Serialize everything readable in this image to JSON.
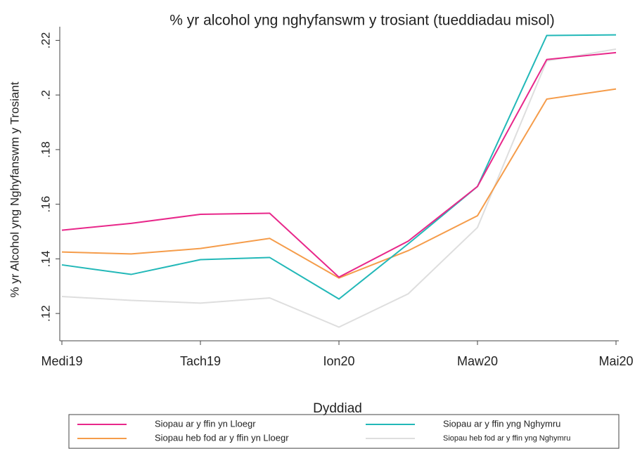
{
  "chart_data": {
    "type": "line",
    "title": "% yr alcohol yng nghyfanswm y trosiant (tueddiadau misol)",
    "x_label": "Dyddiad",
    "y_label": "% yr Alcohol yng Nghyfanswm y Trosiant",
    "categories": [
      "Medi19",
      null,
      "Tach19",
      null,
      "Ion20",
      null,
      "Maw20",
      null,
      "Mai20"
    ],
    "series": [
      {
        "name": "Siopau ar y ffin yn Lloegr",
        "color": "#e8278a",
        "values": [
          0.1505,
          0.153,
          0.1563,
          0.1567,
          0.1333,
          0.1465,
          0.1665,
          0.213,
          0.2155
        ]
      },
      {
        "name": "Siopau ar y ffin yng Nghymru",
        "color": "#22b8b8",
        "values": [
          0.1378,
          0.1343,
          0.1397,
          0.1405,
          0.1253,
          0.1455,
          0.1665,
          0.2218,
          0.222
        ]
      },
      {
        "name": "Siopau heb fod ar y ffin yn Lloegr",
        "color": "#f59c4a",
        "values": [
          0.1425,
          0.1418,
          0.1438,
          0.1475,
          0.133,
          0.143,
          0.1558,
          0.1985,
          0.2022
        ]
      },
      {
        "name": "Siopau heb fod ar y ffin yng Nghymru",
        "color": "#dedede",
        "values": [
          0.1262,
          0.1248,
          0.1238,
          0.1257,
          0.115,
          0.1272,
          0.1515,
          0.2125,
          0.2168
        ]
      }
    ],
    "ylim": [
      0.11,
      0.225
    ],
    "yticks": [
      {
        "value": 0.12,
        "label": ".12"
      },
      {
        "value": 0.14,
        "label": ".14"
      },
      {
        "value": 0.16,
        "label": ".16"
      },
      {
        "value": 0.18,
        "label": ".18"
      },
      {
        "value": 0.2,
        "label": ".2"
      },
      {
        "value": 0.22,
        "label": ".22"
      }
    ],
    "legend": "bottom"
  }
}
